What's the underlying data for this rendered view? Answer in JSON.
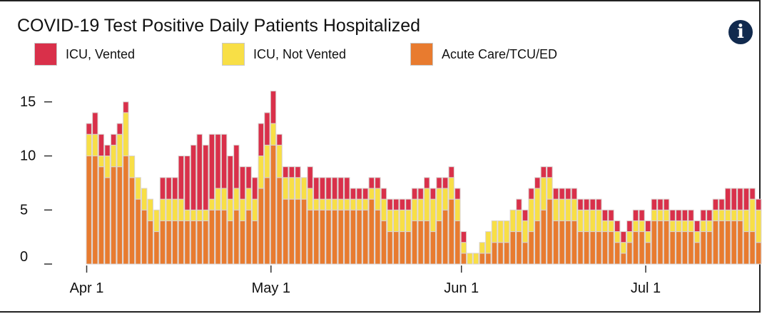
{
  "title": "COVID-19 Test Positive Daily Patients Hospitalized",
  "info_icon": "info-icon",
  "legend": [
    {
      "label": "ICU, Vented",
      "color": "#d9304a"
    },
    {
      "label": "ICU, Not Vented",
      "color": "#f8df46"
    },
    {
      "label": "Acute Care/TCU/ED",
      "color": "#e87b2f"
    }
  ],
  "chart_data": {
    "type": "bar",
    "stacked": true,
    "x_start": "Apr 1",
    "x_tick_labels": [
      {
        "label": "Apr 1",
        "day": 0
      },
      {
        "label": "May 1",
        "day": 30
      },
      {
        "label": "Jun 1",
        "day": 61
      },
      {
        "label": "Jul 1",
        "day": 91
      }
    ],
    "y_ticks": [
      0,
      5,
      10,
      15
    ],
    "ylim": [
      0,
      16
    ],
    "series": [
      {
        "name": "ICU, Vented",
        "color": "#d9304a",
        "values": [
          1,
          2,
          2,
          1,
          1,
          1,
          1,
          0,
          0,
          0,
          0,
          0,
          2,
          2,
          2,
          4,
          5,
          6,
          7,
          6,
          6,
          5,
          5,
          4,
          4,
          3,
          2,
          2,
          3,
          3,
          3,
          1,
          1,
          1,
          1,
          0,
          2,
          2,
          2,
          2,
          2,
          2,
          2,
          1,
          1,
          1,
          1,
          1,
          1,
          1,
          1,
          1,
          1,
          1,
          1,
          1,
          1,
          1,
          1,
          1,
          1,
          1,
          0,
          0,
          0,
          0,
          0,
          0,
          0,
          0,
          1,
          1,
          1,
          1,
          1,
          1,
          1,
          1,
          1,
          1,
          1,
          1,
          1,
          1,
          1,
          1,
          1,
          1,
          1,
          1,
          1,
          1,
          1,
          1,
          1,
          1,
          1,
          1,
          1,
          1,
          1,
          1,
          1,
          1,
          2,
          2,
          2,
          2,
          1,
          1
        ]
      },
      {
        "name": "ICU, Not Vented",
        "color": "#f8df46",
        "values": [
          2,
          2,
          1,
          2,
          2,
          3,
          4,
          2,
          2,
          2,
          2,
          2,
          2,
          2,
          2,
          2,
          1,
          1,
          1,
          1,
          1,
          2,
          2,
          2,
          2,
          2,
          2,
          2,
          3,
          3,
          2,
          3,
          2,
          2,
          2,
          2,
          2,
          1,
          1,
          1,
          1,
          1,
          1,
          1,
          1,
          1,
          1,
          2,
          2,
          2,
          2,
          2,
          2,
          2,
          2,
          3,
          3,
          3,
          2,
          2,
          2,
          1,
          1,
          1,
          1,
          2,
          2,
          2,
          2,
          2,
          2,
          2,
          3,
          3,
          3,
          2,
          2,
          2,
          2,
          2,
          2,
          2,
          2,
          2,
          1,
          1,
          1,
          1,
          1,
          1,
          1,
          1,
          1,
          1,
          1,
          1,
          1,
          1,
          1,
          1,
          1,
          1,
          1,
          1,
          1,
          1,
          1,
          2,
          3,
          3
        ]
      },
      {
        "name": "Acute Care/TCU/ED",
        "color": "#e87b2f",
        "values": [
          10,
          10,
          9,
          8,
          9,
          9,
          10,
          8,
          6,
          5,
          4,
          3,
          4,
          4,
          4,
          4,
          4,
          4,
          4,
          4,
          5,
          5,
          5,
          4,
          5,
          4,
          5,
          4,
          7,
          8,
          11,
          8,
          6,
          6,
          6,
          6,
          5,
          5,
          5,
          5,
          5,
          5,
          5,
          5,
          5,
          5,
          6,
          5,
          4,
          3,
          3,
          3,
          3,
          4,
          4,
          4,
          3,
          4,
          5,
          6,
          4,
          1,
          0,
          0,
          1,
          1,
          2,
          2,
          2,
          3,
          3,
          2,
          3,
          4,
          5,
          6,
          4,
          4,
          4,
          4,
          3,
          3,
          3,
          3,
          3,
          3,
          2,
          1,
          2,
          3,
          3,
          2,
          4,
          4,
          4,
          3,
          3,
          3,
          3,
          2,
          3,
          3,
          4,
          4,
          4,
          4,
          4,
          3,
          3,
          2
        ]
      }
    ]
  }
}
